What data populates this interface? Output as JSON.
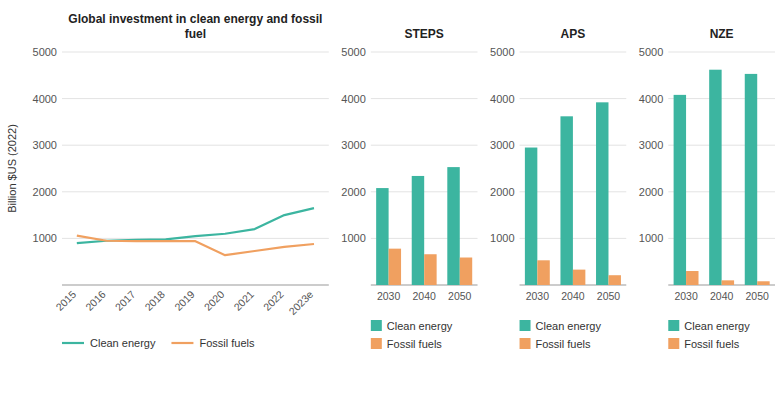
{
  "chart_data": [
    {
      "type": "line",
      "title": "Global investment in clean energy and fossil\nfuel",
      "ylabel": "Billion $US (2022)",
      "categories": [
        "2015",
        "2016",
        "2017",
        "2018",
        "2019",
        "2020",
        "2021",
        "2022",
        "2023e"
      ],
      "series": [
        {
          "name": "Clean energy",
          "color": "#3cb5a0",
          "values": [
            900,
            950,
            970,
            980,
            1050,
            1100,
            1200,
            1500,
            1650
          ]
        },
        {
          "name": "Fossil fuels",
          "color": "#f0a060",
          "values": [
            1060,
            950,
            940,
            940,
            940,
            640,
            730,
            820,
            880
          ]
        }
      ],
      "ylim": [
        0,
        5000
      ],
      "yticks": [
        1000,
        2000,
        3000,
        4000,
        5000
      ],
      "grid": true,
      "legend": "bottom"
    },
    {
      "type": "bar",
      "title": "STEPS",
      "categories": [
        "2030",
        "2040",
        "2050"
      ],
      "series": [
        {
          "name": "Clean energy",
          "color": "#3cb5a0",
          "values": [
            2080,
            2340,
            2530
          ]
        },
        {
          "name": "Fossil fuels",
          "color": "#f0a060",
          "values": [
            780,
            660,
            590
          ]
        }
      ],
      "ylim": [
        0,
        5000
      ],
      "yticks": [
        1000,
        2000,
        3000,
        4000,
        5000
      ],
      "grid": true,
      "legend": "bottom"
    },
    {
      "type": "bar",
      "title": "APS",
      "categories": [
        "2030",
        "2040",
        "2050"
      ],
      "series": [
        {
          "name": "Clean energy",
          "color": "#3cb5a0",
          "values": [
            2950,
            3620,
            3920
          ]
        },
        {
          "name": "Fossil fuels",
          "color": "#f0a060",
          "values": [
            530,
            330,
            210
          ]
        }
      ],
      "ylim": [
        0,
        5000
      ],
      "yticks": [
        1000,
        2000,
        3000,
        4000,
        5000
      ],
      "grid": true,
      "legend": "bottom"
    },
    {
      "type": "bar",
      "title": "NZE",
      "categories": [
        "2030",
        "2040",
        "2050"
      ],
      "series": [
        {
          "name": "Clean energy",
          "color": "#3cb5a0",
          "values": [
            4080,
            4620,
            4530
          ]
        },
        {
          "name": "Fossil fuels",
          "color": "#f0a060",
          "values": [
            300,
            100,
            80
          ]
        }
      ],
      "ylim": [
        0,
        5000
      ],
      "yticks": [
        1000,
        2000,
        3000,
        4000,
        5000
      ],
      "grid": true,
      "legend": "bottom"
    }
  ]
}
